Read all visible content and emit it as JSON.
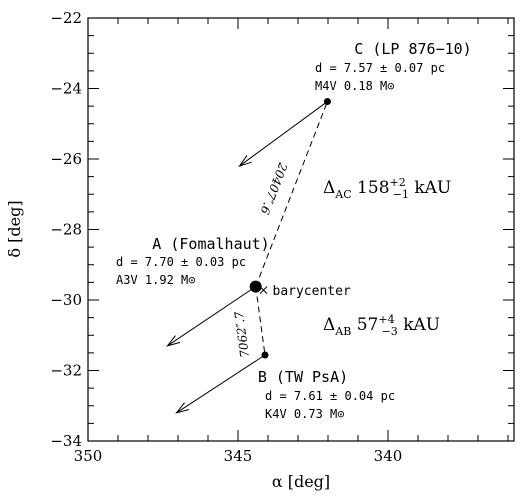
{
  "chart_data": {
    "type": "scatter",
    "title": "",
    "xlabel": "α [deg]",
    "ylabel": "δ [deg]",
    "xlim": [
      350,
      335.8
    ],
    "ylim": [
      -34,
      -22
    ],
    "x_ticks": [
      {
        "value": 350,
        "label": "350"
      },
      {
        "value": 345,
        "label": "345"
      },
      {
        "value": 340,
        "label": "340"
      }
    ],
    "y_ticks": [
      {
        "value": -22,
        "label": "−22"
      },
      {
        "value": -24,
        "label": "−24"
      },
      {
        "value": -26,
        "label": "−26"
      },
      {
        "value": -28,
        "label": "−28"
      },
      {
        "value": -30,
        "label": "−30"
      },
      {
        "value": -32,
        "label": "−32"
      },
      {
        "value": -34,
        "label": "−34"
      }
    ],
    "stars": [
      {
        "id": "A",
        "name": "A (Fomalhaut)",
        "ra": 344.41,
        "dec": -29.62,
        "distance": "d = 7.70 ± 0.03 pc",
        "spectral": "A3V",
        "mass": "1.92 M⊙",
        "marker": "large",
        "motion_end": {
          "ra": 347.35,
          "dec": -31.3
        }
      },
      {
        "id": "B",
        "name": "B (TW PsA)",
        "ra": 344.1,
        "dec": -31.56,
        "distance": "d = 7.61 ± 0.04 pc",
        "spectral": "K4V",
        "mass": "0.73 M⊙",
        "marker": "small",
        "motion_end": {
          "ra": 347.05,
          "dec": -33.2
        }
      },
      {
        "id": "C",
        "name": "C (LP 876−10)",
        "ra": 342.02,
        "dec": -24.37,
        "distance": "d = 7.57 ± 0.07 pc",
        "spectral": "M4V",
        "mass": "0.18 M⊙",
        "marker": "small",
        "motion_end": {
          "ra": 344.95,
          "dec": -26.2
        }
      }
    ],
    "barycenter": {
      "label": "barycenter",
      "ra": 344.15,
      "dec": -29.72
    },
    "separations": [
      {
        "from": "A",
        "to": "C",
        "label": "20407″.6",
        "delta_label": "Δ",
        "delta_sub": "AC",
        "value": "158",
        "err_up": "+2",
        "err_down": "−1",
        "unit": "kAU"
      },
      {
        "from": "A",
        "to": "B",
        "label": "7062″.7",
        "delta_label": "Δ",
        "delta_sub": "AB",
        "value": "57",
        "err_up": "+4",
        "err_down": "−3",
        "unit": "kAU"
      }
    ]
  }
}
